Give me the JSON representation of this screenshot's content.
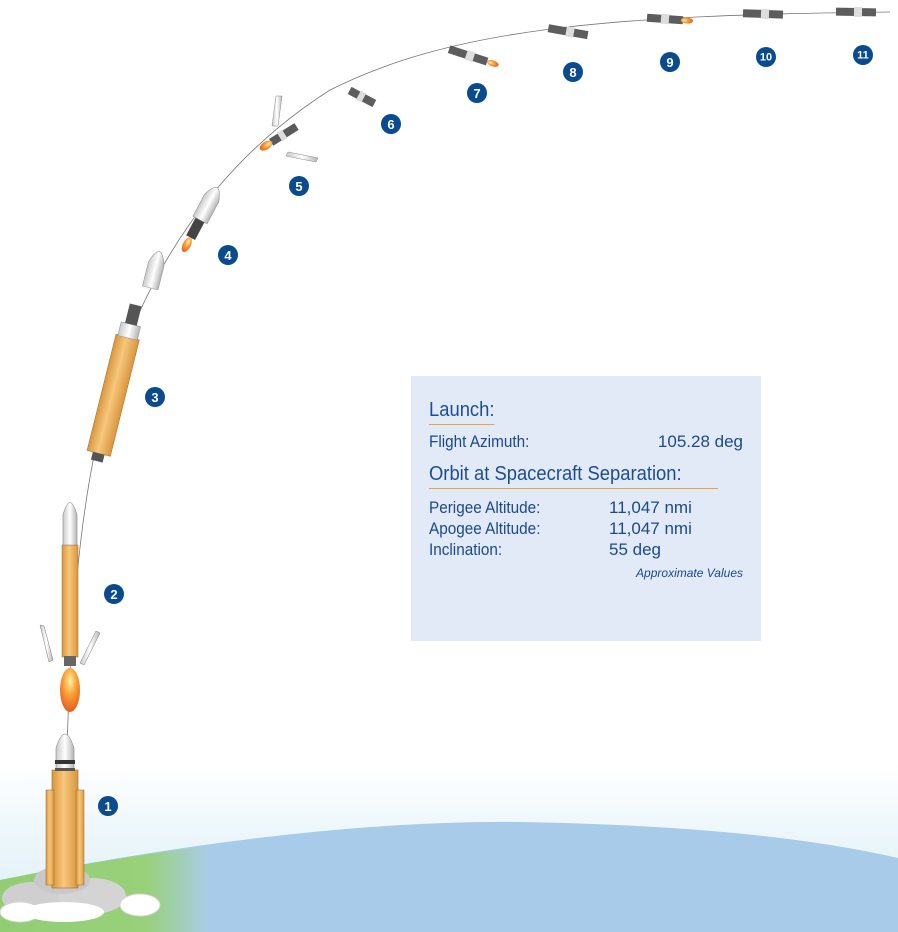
{
  "markers": [
    "1",
    "2",
    "3",
    "4",
    "5",
    "6",
    "7",
    "8",
    "9",
    "10",
    "11"
  ],
  "launch": {
    "heading": "Launch:",
    "flight_azimuth_label": "Flight Azimuth:",
    "flight_azimuth_value": "105.28 deg"
  },
  "orbit": {
    "heading": "Orbit at Spacecraft Separation:",
    "perigee_label": "Perigee Altitude:",
    "perigee_value": "11,047 nmi",
    "apogee_label": "Apogee Altitude:",
    "apogee_value": "11,047 nmi",
    "inclination_label": "Inclination:",
    "inclination_value": "55 deg",
    "note": "Approximate Values"
  },
  "colors": {
    "marker": "#0a4a8f",
    "earth": "#a9cce9",
    "ground": "#8fcb72",
    "booster": "#efb35e",
    "flame": "#f28a1f",
    "box": "#e2e9f7",
    "heading_underline": "#e9a53b"
  }
}
